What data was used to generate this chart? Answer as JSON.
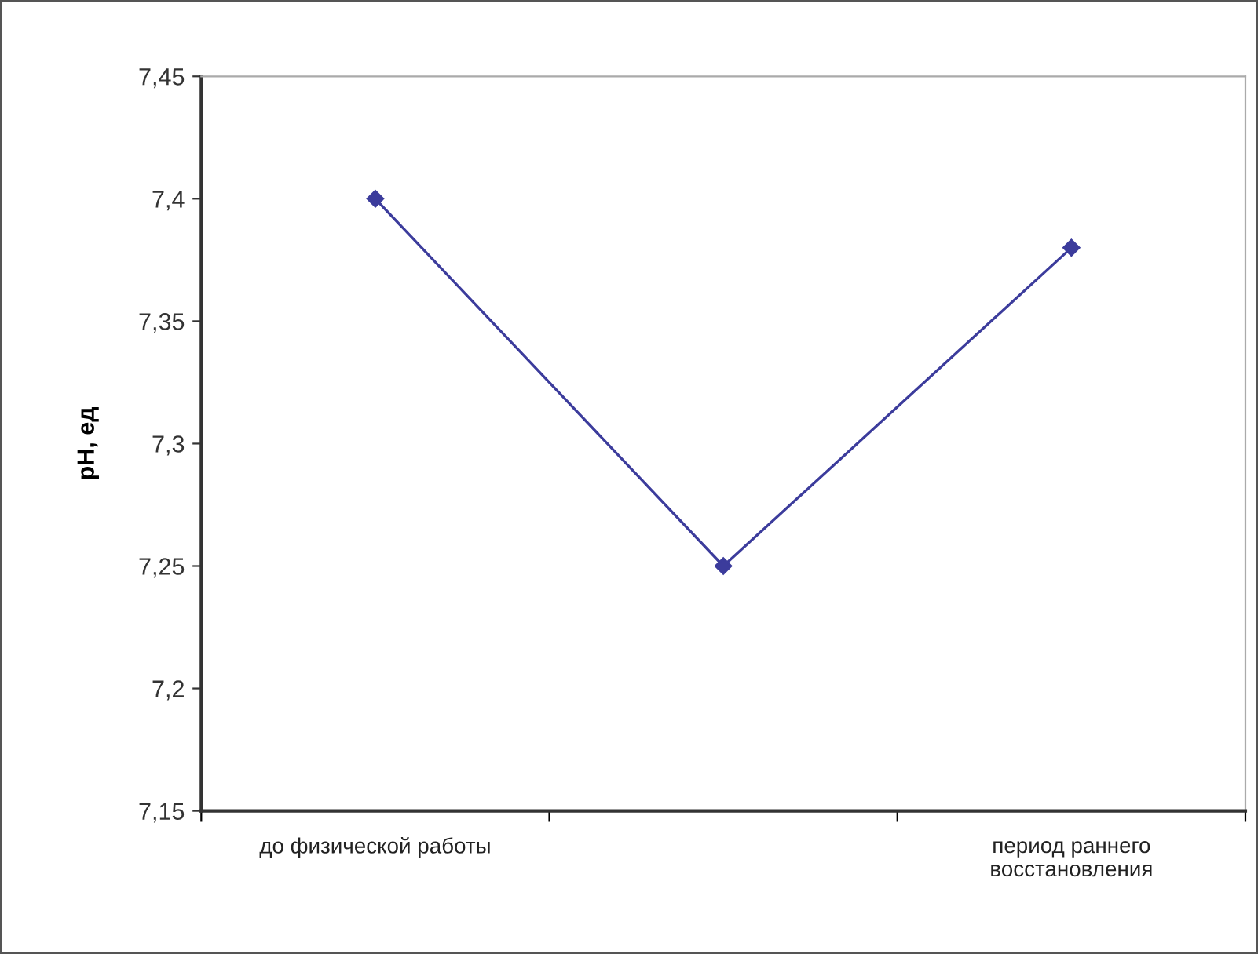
{
  "chart_data": {
    "type": "line",
    "ylabel": "pH, ед",
    "categories": [
      "до физической работы",
      null,
      "период раннего\nвосстановления"
    ],
    "series": [
      {
        "color": "#3c3c9c",
        "values": [
          7.4,
          7.25,
          7.38
        ]
      }
    ],
    "ylim": [
      7.15,
      7.45
    ],
    "yticks": [
      {
        "value": 7.15,
        "label": "7,15"
      },
      {
        "value": 7.2,
        "label": "7,2"
      },
      {
        "value": 7.25,
        "label": "7,25"
      },
      {
        "value": 7.3,
        "label": "7,3"
      },
      {
        "value": 7.35,
        "label": "7,35"
      },
      {
        "value": 7.4,
        "label": "7,4"
      },
      {
        "value": 7.45,
        "label": "7,45"
      }
    ],
    "grid": false,
    "legend": false,
    "marker": "diamond",
    "line_style": "solid"
  }
}
